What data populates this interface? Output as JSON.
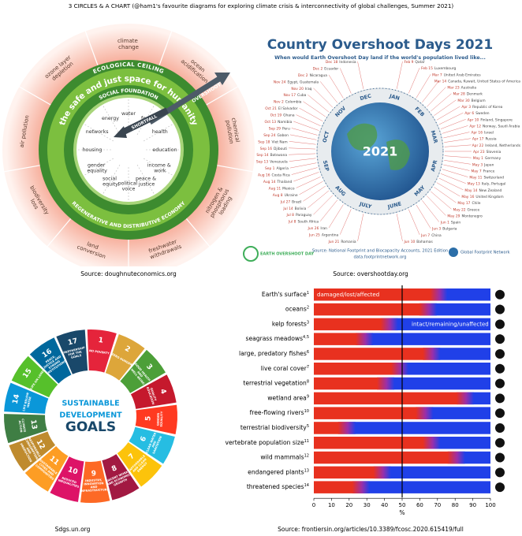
{
  "title": "3 CIRCLES & A CHART (@ham1's favourite diagrams for exploring climate crisis & interconnectivity of global challenges, Summer 2021)",
  "doughnut": {
    "ceiling": "ECOLOGICAL CEILING",
    "space": "the safe and just space for humanity",
    "foundation": "SOCIAL FOUNDATION",
    "economy": "REGENERATIVE AND DISTRIBUTIVE ECONOMY",
    "overshoot": "OVERSHOOT",
    "shortfall": "SHORTFALL",
    "ecological": [
      "climate change",
      "ocean acidification",
      "chemical pollution",
      "nitrogen & phosphorus loading",
      "freshwater withdrawals",
      "land conversion",
      "biodiversity loss",
      "air pollution",
      "ozone layer depletion"
    ],
    "social": [
      "water",
      "food",
      "health",
      "education",
      "income & work",
      "peace & justice",
      "political voice",
      "social equity",
      "gender equality",
      "housing",
      "networks",
      "energy"
    ],
    "caption": "Source: doughnuteconomics.org"
  },
  "overshoot": {
    "title": "Country Overshoot Days 2021",
    "subtitle": "When would Earth Overshoot Day land if the world's population lived like...",
    "year": "2021",
    "months": [
      "JAN",
      "FEB",
      "MAR",
      "APR",
      "MAY",
      "JUNE",
      "JULY",
      "AUG",
      "SEP",
      "OCT",
      "NOV",
      "DEC"
    ],
    "countries": [
      {
        "date": "Feb 9",
        "name": "Qatar"
      },
      {
        "date": "Feb 15",
        "name": "Luxembourg"
      },
      {
        "date": "Mar 7",
        "name": "United Arab Emirates"
      },
      {
        "date": "Mar 14",
        "name": "Canada, Kuwait, United States of America"
      },
      {
        "date": "Mar 23",
        "name": "Australia"
      },
      {
        "date": "Mar 28",
        "name": "Denmark"
      },
      {
        "date": "Mar 30",
        "name": "Belgium"
      },
      {
        "date": "Apr 3",
        "name": "Republic of Korea"
      },
      {
        "date": "Apr 6",
        "name": "Sweden"
      },
      {
        "date": "Apr 10",
        "name": "Finland, Singapore"
      },
      {
        "date": "Apr 12",
        "name": "Norway, Saudi Arabia"
      },
      {
        "date": "Apr 16",
        "name": "Israel"
      },
      {
        "date": "Apr 17",
        "name": "Russia"
      },
      {
        "date": "Apr 22",
        "name": "Ireland, Netherlands"
      },
      {
        "date": "Apr 23",
        "name": "Slovenia"
      },
      {
        "date": "May 1",
        "name": "Germany"
      },
      {
        "date": "May 3",
        "name": "Japan"
      },
      {
        "date": "May 7",
        "name": "France"
      },
      {
        "date": "May 11",
        "name": "Switzerland"
      },
      {
        "date": "May 13",
        "name": "Italy, Portugal"
      },
      {
        "date": "May 14",
        "name": "New Zealand"
      },
      {
        "date": "May 16",
        "name": "United Kingdom"
      },
      {
        "date": "May 17",
        "name": "Chile"
      },
      {
        "date": "May 22",
        "name": "Greece"
      },
      {
        "date": "May 29",
        "name": "Montenegro"
      },
      {
        "date": "Jun 1",
        "name": "Spain"
      },
      {
        "date": "Jun 3",
        "name": "Bulgaria"
      },
      {
        "date": "Jun 7",
        "name": "China"
      },
      {
        "date": "Jun 10",
        "name": "Bahamas"
      },
      {
        "date": "Jun 21",
        "name": "Romania"
      },
      {
        "date": "Jun 25",
        "name": "Argentina"
      },
      {
        "date": "Jun 26",
        "name": "Iran"
      },
      {
        "date": "Jul 8",
        "name": "South Africa"
      },
      {
        "date": "Jul 8",
        "name": "Paraguay"
      },
      {
        "date": "Jul 14",
        "name": "Bolivia"
      },
      {
        "date": "Jul 27",
        "name": "Brazil"
      },
      {
        "date": "Aug 8",
        "name": "Ukraine"
      },
      {
        "date": "Aug 11",
        "name": "Mexico"
      },
      {
        "date": "Aug 14",
        "name": "Thailand"
      },
      {
        "date": "Aug 16",
        "name": "Costa Rica"
      },
      {
        "date": "Sep 1",
        "name": "Algeria"
      },
      {
        "date": "Sep 13",
        "name": "Venezuela"
      },
      {
        "date": "Sep 14",
        "name": "Botswana"
      },
      {
        "date": "Sep 16",
        "name": "Djibouti"
      },
      {
        "date": "Sep 18",
        "name": "Viet Nam"
      },
      {
        "date": "Sep 24",
        "name": "Gabon"
      },
      {
        "date": "Sep 29",
        "name": "Peru"
      },
      {
        "date": "Oct 13",
        "name": "Namibia"
      },
      {
        "date": "Oct 19",
        "name": "Ghana"
      },
      {
        "date": "Oct 21",
        "name": "El Salvador"
      },
      {
        "date": "Nov 2",
        "name": "Colombia"
      },
      {
        "date": "Nov 17",
        "name": "Cuba"
      },
      {
        "date": "Nov 20",
        "name": "Iraq"
      },
      {
        "date": "Nov 24",
        "name": "Egypt, Guatemala"
      },
      {
        "date": "Dec 2",
        "name": "Nicaragua"
      },
      {
        "date": "Dec 2",
        "name": "Ecuador"
      },
      {
        "date": "Dec 18",
        "name": "Indonesia"
      }
    ],
    "logo": "EARTH OVERSHOOT DAY",
    "source": "Source: National Footprint and Biocapacity Accounts, 2021 Edition",
    "website": "data.footprintnetwork.org",
    "network": "Global Footprint Network",
    "caption": "Source: overshootday.org"
  },
  "sdg": {
    "center": [
      "SUSTAINABLE",
      "DEVELOPMENT",
      "GOALS"
    ],
    "goals": [
      {
        "number": 1,
        "label": "NO POVERTY",
        "color": "#e5243b"
      },
      {
        "number": 2,
        "label": "ZERO HUNGER",
        "color": "#dda63a"
      },
      {
        "number": 3,
        "label": "GOOD HEALTH AND WELL-BEING",
        "color": "#4c9f38"
      },
      {
        "number": 4,
        "label": "QUALITY EDUCATION",
        "color": "#c5192d"
      },
      {
        "number": 5,
        "label": "GENDER EQUALITY",
        "color": "#ff3a21"
      },
      {
        "number": 6,
        "label": "CLEAN WATER AND SANITATION",
        "color": "#26bde2"
      },
      {
        "number": 7,
        "label": "AFFORDABLE AND CLEAN ENERGY",
        "color": "#fcc30b"
      },
      {
        "number": 8,
        "label": "DECENT WORK AND ECONOMIC GROWTH",
        "color": "#a21942"
      },
      {
        "number": 9,
        "label": "INDUSTRY, INNOVATION AND INFRASTRUCTURE",
        "color": "#fd6925"
      },
      {
        "number": 10,
        "label": "REDUCED INEQUALITIES",
        "color": "#dd1367"
      },
      {
        "number": 11,
        "label": "SUSTAINABLE CITIES AND COMMUNITIES",
        "color": "#fd9d24"
      },
      {
        "number": 12,
        "label": "RESPONSIBLE CONSUMPTION AND PRODUCTION",
        "color": "#bf8b2e"
      },
      {
        "number": 13,
        "label": "CLIMATE ACTION",
        "color": "#3f7e44"
      },
      {
        "number": 14,
        "label": "LIFE BELOW WATER",
        "color": "#0a97d9"
      },
      {
        "number": 15,
        "label": "LIFE ON LAND",
        "color": "#56c02b"
      },
      {
        "number": 16,
        "label": "PEACE, JUSTICE AND STRONG INSTITUTIONS",
        "color": "#00689d"
      },
      {
        "number": 17,
        "label": "PARTNERSHIP FOR THE GOALS",
        "color": "#19486a"
      }
    ],
    "caption": "Sdgs.un.org"
  },
  "chart_data": {
    "type": "bar",
    "orientation": "horizontal",
    "categories": [
      "Earth's surface",
      "oceans",
      "kelp forests",
      "seagrass meadows",
      "large, predatory fishes",
      "live coral cover",
      "terrestrial vegetation",
      "wetland area",
      "free-flowing rivers",
      "terrestrial biodiversity",
      "vertebrate population size",
      "wild mammals",
      "endangered plants",
      "threatened species"
    ],
    "footnotes": [
      "1",
      "2",
      "3",
      "4,5",
      "6",
      "7",
      "8",
      "9",
      "10",
      "5",
      "11",
      "12",
      "13",
      "14"
    ],
    "series": [
      {
        "name": "damaged/lost/affected",
        "color": "#e8311f",
        "values": [
          72,
          66,
          44,
          30,
          68,
          50,
          42,
          87,
          64,
          20,
          68,
          82,
          40,
          28
        ]
      }
    ],
    "remainder": {
      "name": "intact/remaining/unaffected",
      "color": "#2040e8"
    },
    "xlim": [
      0,
      100
    ],
    "xticks": [
      0,
      10,
      20,
      30,
      40,
      50,
      60,
      70,
      80,
      90,
      100
    ],
    "xlabel": "%",
    "reference_line": 50,
    "caption": "Source: frontiersin.org/articles/10.3389/fcosc.2020.615419/full"
  }
}
